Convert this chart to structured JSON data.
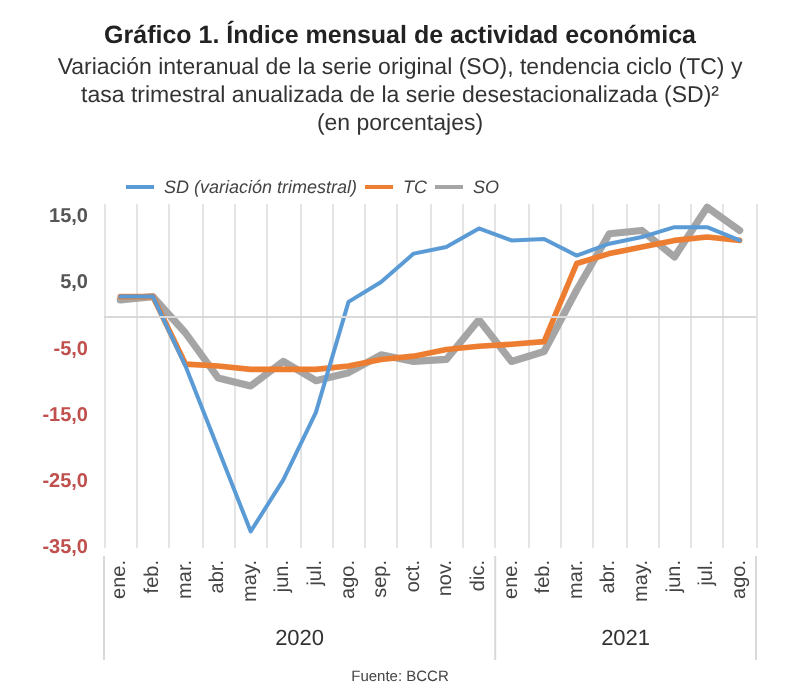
{
  "chart_data": {
    "type": "line",
    "title": "Gráfico 1. Índice mensual de actividad económica",
    "subtitle": "Variación interanual de la serie original (SO), tendencia ciclo (TC) y\ntasa trimestral anualizada de la serie desestacionalizada (SD)²\n(en porcentajes)",
    "categories": [
      "ene.",
      "feb.",
      "mar.",
      "abr.",
      "may.",
      "jun.",
      "jul.",
      "ago.",
      "sep.",
      "oct.",
      "nov.",
      "dic.",
      "ene.",
      "feb.",
      "mar.",
      "abr.",
      "may.",
      "jun.",
      "jul.",
      "ago."
    ],
    "series": [
      {
        "name": "SD (variación trimestral)",
        "color": "#5b9bd5",
        "values": [
          3,
          3,
          -7.5,
          -20,
          -32.5,
          -24.7,
          -14.5,
          2.2,
          5.2,
          9.5,
          10.5,
          13.3,
          11.5,
          11.7,
          9.2,
          11,
          12,
          13.5,
          13.5,
          11.5
        ]
      },
      {
        "name": "TC",
        "color": "#ed7d31",
        "values": [
          3,
          3,
          -7.2,
          -7.5,
          -8,
          -8,
          -8,
          -7.5,
          -6.5,
          -6,
          -5,
          -4.5,
          -4.2,
          -3.8,
          8,
          9.5,
          10.5,
          11.5,
          12,
          11.5
        ]
      },
      {
        "name": "SO",
        "color": "#a5a5a5",
        "values": [
          2.5,
          3,
          -2.5,
          -9.3,
          -10.5,
          -6.8,
          -9.7,
          -8.5,
          -5.8,
          -6.8,
          -6.5,
          -0.5,
          -6.8,
          -5.3,
          4,
          12.5,
          13,
          9,
          16.5,
          13
        ]
      }
    ],
    "ylim": [
      -35,
      17
    ],
    "yticks": [
      {
        "value": -35,
        "label": "-35,0"
      },
      {
        "value": -25,
        "label": "-25,0"
      },
      {
        "value": -15,
        "label": "-15,0"
      },
      {
        "value": -5,
        "label": "-5,0"
      },
      {
        "value": 5,
        "label": "5,0"
      },
      {
        "value": 15,
        "label": "15,0"
      }
    ],
    "ref_lines": [
      {
        "axis": "y",
        "value": 0,
        "color": "#d9d9d9"
      }
    ],
    "annotations": [
      "2020",
      "2021",
      "Fuente: BCCR"
    ],
    "grid": "x",
    "legend": "top left",
    "marker": "none",
    "line_style": "solid"
  }
}
